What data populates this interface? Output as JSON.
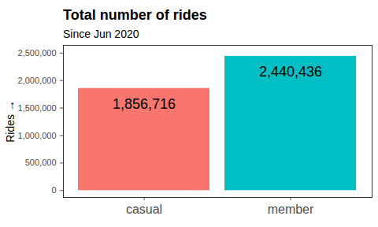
{
  "chart_data": {
    "type": "bar",
    "title": "Total number of rides",
    "subtitle": "Since Jun 2020",
    "y_label": "Rides",
    "categories": [
      "casual",
      "member"
    ],
    "values": [
      1856716,
      2440436
    ],
    "value_labels": [
      "1,856,716",
      "2,440,436"
    ],
    "colors": [
      "#F8766D",
      "#00BFC4"
    ],
    "data_labels": true,
    "grid": false,
    "ylim": [
      -125000,
      2640000
    ],
    "yticks": [
      0,
      {
        "value": 500000,
        "label": "500,000"
      },
      {
        "value": 1000000,
        "label": "1,000,000"
      },
      {
        "value": 1500000,
        "label": "1,500,000"
      },
      {
        "value": 2000000,
        "label": "2,000,000"
      },
      {
        "value": 2500000,
        "label": "2,500,000"
      }
    ]
  }
}
